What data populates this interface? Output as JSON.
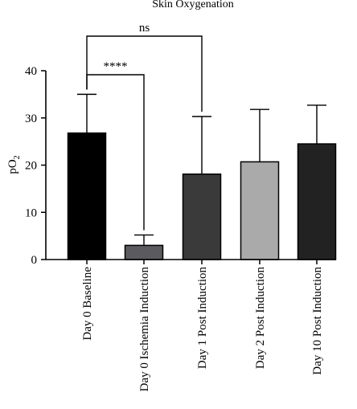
{
  "chart_data": {
    "type": "bar",
    "title": "Skin Oxygenation",
    "ylabel_main": "pO",
    "ylabel_sub": "2",
    "xlabel": "",
    "ylim": [
      0,
      40
    ],
    "yticks": [
      "0",
      "10",
      "20",
      "30",
      "40"
    ],
    "categories": [
      "Day 0 Baseline",
      "Day 0 Ischemia Induction",
      "Day 1 Post Induction",
      "Day 2 Post Induction",
      "Day 10 Post Induction"
    ],
    "values": [
      26.8,
      3.0,
      18.1,
      20.7,
      24.5
    ],
    "errors_upper": [
      35.0,
      5.2,
      30.3,
      31.8,
      32.7
    ],
    "colors": [
      "#000000",
      "#5a5a5f",
      "#3a3a3a",
      "#aaaaaa",
      "#222222"
    ],
    "significance": [
      {
        "label": "****",
        "from": 0,
        "to": 1
      },
      {
        "label": "ns",
        "from": 0,
        "to": 2
      }
    ],
    "grid": false
  }
}
